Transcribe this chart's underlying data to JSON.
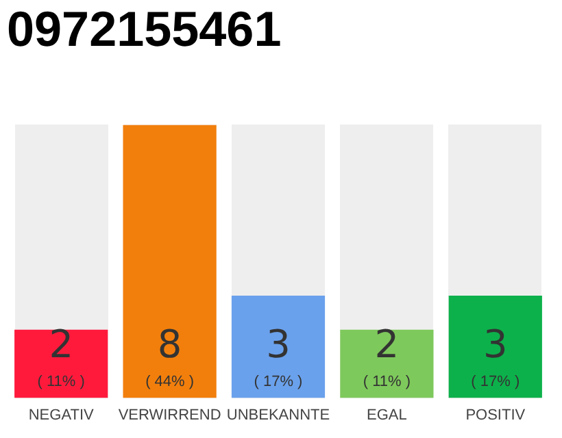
{
  "chart_data": {
    "type": "bar",
    "title": "0972155461",
    "categories": [
      "NEGATIV",
      "VERWIRREND",
      "UNBEKANNTE",
      "EGAL",
      "POSITIV"
    ],
    "values": [
      2,
      8,
      3,
      2,
      3
    ],
    "colors": [
      "#ff1a3c",
      "#f27f0c",
      "#6aa1ec",
      "#7ec95c",
      "#0db14b"
    ],
    "value_labels": [
      "2\n( 11% )",
      "8\n( 44% )",
      "3\n( 17% )",
      "2\n( 11% )",
      "3\n( 17% )"
    ],
    "grid": false,
    "legend": false
  }
}
